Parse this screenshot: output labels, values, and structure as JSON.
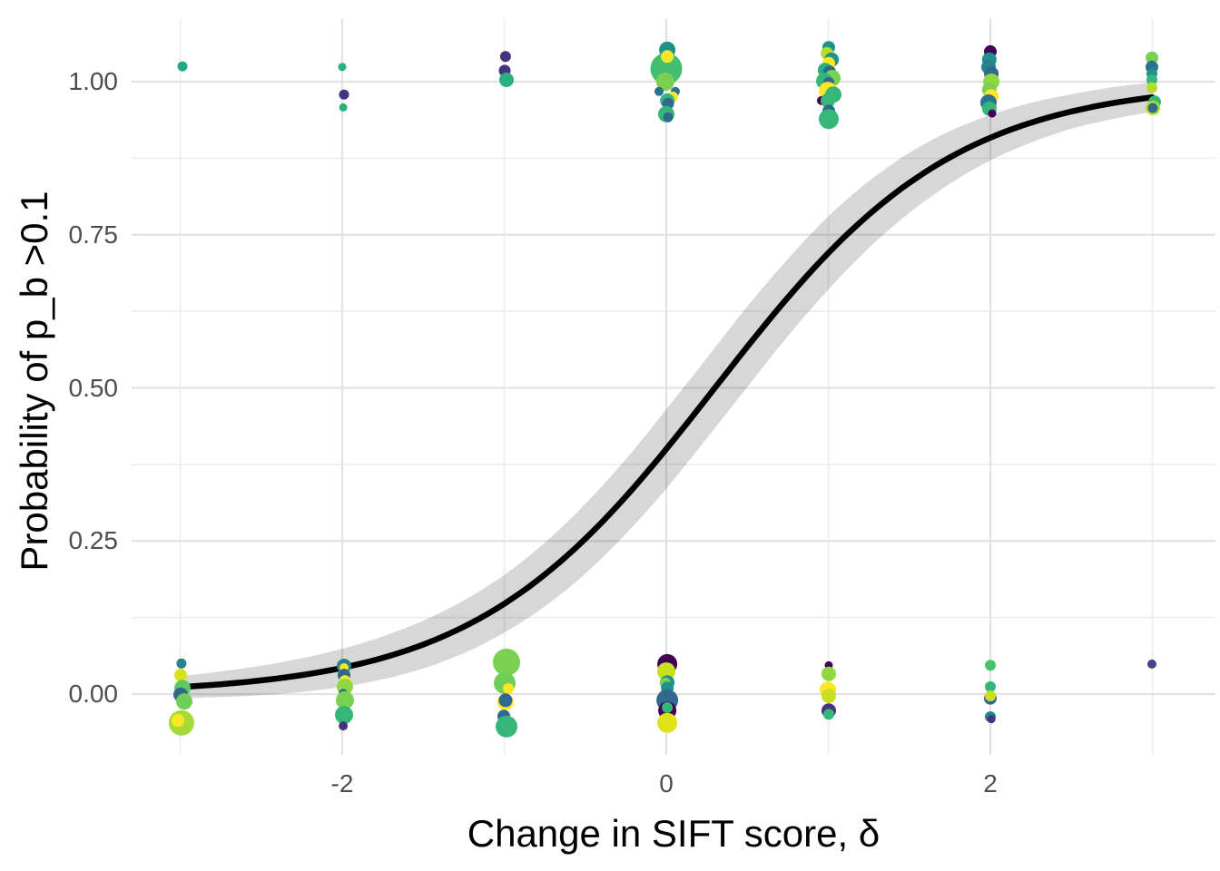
{
  "figure": {
    "xlabel": "Change in SIFT score, δ",
    "ylabel": "Probability of p_b >0.1"
  },
  "chart_data": {
    "type": "scatter",
    "title": "",
    "xlabel": "Change in SIFT score, δ",
    "ylabel": "Probability of p_b >0.1",
    "xlim": [
      -3.3,
      3.39
    ],
    "ylim": [
      -0.115,
      1.104
    ],
    "grid": {
      "major_color": "#e3e3e3",
      "minor_color": "#eeeeee",
      "background": "#ffffff"
    },
    "x_ticks": [
      {
        "value": -2,
        "label": "-2"
      },
      {
        "value": 0,
        "label": "0"
      },
      {
        "value": 2,
        "label": "2"
      }
    ],
    "y_ticks": [
      {
        "value": 0.0,
        "label": "0.00"
      },
      {
        "value": 0.25,
        "label": "0.25"
      },
      {
        "value": 0.5,
        "label": "0.50"
      },
      {
        "value": 0.75,
        "label": "0.75"
      },
      {
        "value": 1.0,
        "label": "1.00"
      }
    ],
    "x_minor_gridlines": [
      -3,
      -1,
      1,
      3
    ],
    "y_minor_gridlines": [
      0.125,
      0.375,
      0.625,
      0.875
    ],
    "fit_curve": {
      "model": "logistic glm fit",
      "formula": "p = 1/(1+exp(-k*(x-x0)))",
      "k": 1.35,
      "x0": 0.3,
      "x_range": [
        -3,
        3
      ],
      "color": "#000000",
      "width": 6.5
    },
    "confidence_band": {
      "color": "#000000",
      "opacity": 0.155,
      "half_widths": [
        {
          "x": -3.0,
          "w": 0.018
        },
        {
          "x": -2.5,
          "w": 0.024
        },
        {
          "x": -2.0,
          "w": 0.031
        },
        {
          "x": -1.5,
          "w": 0.039
        },
        {
          "x": -1.0,
          "w": 0.047
        },
        {
          "x": -0.5,
          "w": 0.057
        },
        {
          "x": 0.0,
          "w": 0.065
        },
        {
          "x": 0.5,
          "w": 0.066
        },
        {
          "x": 1.0,
          "w": 0.06
        },
        {
          "x": 1.5,
          "w": 0.049
        },
        {
          "x": 2.0,
          "w": 0.037
        },
        {
          "x": 2.5,
          "w": 0.028
        },
        {
          "x": 3.0,
          "w": 0.024
        }
      ]
    },
    "points_format": [
      "x_delta",
      "y_probability",
      "radius_px",
      "color"
    ],
    "points": [
      [
        -2.986,
        1.025,
        5.5,
        "#23a884"
      ],
      [
        -2.0,
        1.024,
        4.5,
        "#2ab07f"
      ],
      [
        -1.989,
        0.979,
        5.5,
        "#46327e"
      ],
      [
        -1.994,
        0.958,
        4.5,
        "#2ab07f"
      ],
      [
        -0.992,
        1.041,
        6.0,
        "#46327e"
      ],
      [
        -0.997,
        1.018,
        6.5,
        "#46327e"
      ],
      [
        -0.986,
        1.003,
        8.0,
        "#2ab07f"
      ],
      [
        0.006,
        1.052,
        9.0,
        "#21918c"
      ],
      [
        0.0,
        1.021,
        17.5,
        "#44bf70"
      ],
      [
        0.006,
        1.041,
        7.0,
        "#fde725"
      ],
      [
        -0.006,
        1.0,
        10.0,
        "#7ad151"
      ],
      [
        -0.045,
        0.984,
        5.0,
        "#2c728e"
      ],
      [
        0.056,
        0.984,
        5.0,
        "#2c728e"
      ],
      [
        0.039,
        0.975,
        6.0,
        "#fde725"
      ],
      [
        0.006,
        0.969,
        8.0,
        "#35b779"
      ],
      [
        0.011,
        0.964,
        6.5,
        "#31688e"
      ],
      [
        0.0,
        0.947,
        9.0,
        "#35b779"
      ],
      [
        0.011,
        0.942,
        5.5,
        "#31688e"
      ],
      [
        1.003,
        1.056,
        7.0,
        "#21918c"
      ],
      [
        0.992,
        1.046,
        7.0,
        "#b5de2b"
      ],
      [
        1.02,
        1.036,
        8.0,
        "#21918c"
      ],
      [
        1.003,
        1.03,
        7.0,
        "#fde725"
      ],
      [
        0.98,
        1.019,
        8.0,
        "#2ab07f"
      ],
      [
        1.008,
        1.016,
        7.0,
        "#31688e"
      ],
      [
        1.025,
        1.006,
        9.0,
        "#7ad151"
      ],
      [
        0.975,
        1.001,
        9.0,
        "#35b779"
      ],
      [
        1.003,
        0.999,
        6.0,
        "#31688e"
      ],
      [
        0.997,
        0.985,
        10.0,
        "#fde725"
      ],
      [
        1.031,
        0.979,
        9.0,
        "#35b779"
      ],
      [
        0.958,
        0.969,
        5.0,
        "#440154"
      ],
      [
        0.997,
        0.969,
        8.0,
        "#35b779"
      ],
      [
        1.003,
        0.952,
        7.0,
        "#31688e"
      ],
      [
        1.003,
        0.939,
        11.0,
        "#35b779"
      ],
      [
        2.0,
        1.049,
        7.0,
        "#440154"
      ],
      [
        1.994,
        1.036,
        8.0,
        "#21918c"
      ],
      [
        1.989,
        1.024,
        8.0,
        "#26828e"
      ],
      [
        2.006,
        1.013,
        8.0,
        "#31688e"
      ],
      [
        2.006,
        1.0,
        9.0,
        "#90d743"
      ],
      [
        1.994,
        0.987,
        8.0,
        "#7ad151"
      ],
      [
        2.006,
        0.976,
        8.0,
        "#fde725"
      ],
      [
        1.989,
        0.966,
        9.0,
        "#2c728e"
      ],
      [
        1.994,
        0.956,
        8.0,
        "#35b779"
      ],
      [
        2.011,
        0.948,
        4.5,
        "#440154"
      ],
      [
        2.997,
        1.039,
        7.0,
        "#7ad151"
      ],
      [
        2.997,
        1.024,
        7.0,
        "#2c728e"
      ],
      [
        2.997,
        1.013,
        6.0,
        "#21918c"
      ],
      [
        2.997,
        1.003,
        6.0,
        "#35b779"
      ],
      [
        2.997,
        0.99,
        6.0,
        "#b5de2b"
      ],
      [
        3.014,
        0.967,
        7.0,
        "#35b779"
      ],
      [
        3.003,
        0.957,
        8.0,
        "#b5de2b"
      ],
      [
        3.003,
        0.957,
        5.5,
        "#31688e"
      ],
      [
        -2.992,
        0.05,
        5.5,
        "#26828e"
      ],
      [
        -2.997,
        0.031,
        7.0,
        "#d8e219"
      ],
      [
        -2.986,
        0.01,
        9.0,
        "#5ec962"
      ],
      [
        -2.997,
        -0.001,
        8.0,
        "#31688e"
      ],
      [
        -2.975,
        -0.012,
        9.0,
        "#6ece58"
      ],
      [
        -2.992,
        -0.047,
        14.0,
        "#a5db36"
      ],
      [
        -3.014,
        -0.043,
        7.0,
        "#fde725"
      ],
      [
        -1.989,
        0.046,
        8.0,
        "#26828e"
      ],
      [
        -1.989,
        0.043,
        5.0,
        "#fde725"
      ],
      [
        -1.989,
        0.031,
        7.0,
        "#31688e"
      ],
      [
        -1.983,
        0.022,
        6.0,
        "#fde725"
      ],
      [
        -1.983,
        0.012,
        9.0,
        "#90d743"
      ],
      [
        -1.994,
        0.001,
        5.0,
        "#31688e"
      ],
      [
        -1.983,
        -0.01,
        10.0,
        "#7ad151"
      ],
      [
        -1.989,
        -0.034,
        10.0,
        "#35b779"
      ],
      [
        -1.994,
        -0.052,
        5.0,
        "#46327e"
      ],
      [
        -0.986,
        0.052,
        15.0,
        "#7ad151"
      ],
      [
        -0.997,
        0.018,
        12.0,
        "#6ece58"
      ],
      [
        -0.975,
        0.009,
        6.0,
        "#fde725"
      ],
      [
        -0.992,
        -0.013,
        9.0,
        "#fde725"
      ],
      [
        -0.992,
        -0.01,
        7.5,
        "#31688e"
      ],
      [
        -1.003,
        -0.036,
        7.0,
        "#31688e"
      ],
      [
        -0.986,
        -0.053,
        12.0,
        "#35b779"
      ],
      [
        0.006,
        0.049,
        11.0,
        "#440154"
      ],
      [
        0.0,
        0.037,
        10.0,
        "#c8e020"
      ],
      [
        0.006,
        0.019,
        8.0,
        "#21918c"
      ],
      [
        -0.006,
        0.018,
        6.0,
        "#7ad151"
      ],
      [
        0.006,
        0.01,
        7.0,
        "#21918c"
      ],
      [
        0.006,
        -0.01,
        12.0,
        "#31688e"
      ],
      [
        0.006,
        -0.027,
        10.0,
        "#440154"
      ],
      [
        0.006,
        -0.022,
        6.0,
        "#35b779"
      ],
      [
        0.006,
        -0.047,
        11.0,
        "#dde318"
      ],
      [
        1.003,
        0.047,
        4.5,
        "#440154"
      ],
      [
        1.003,
        0.033,
        8.0,
        "#90d743"
      ],
      [
        0.997,
        0.007,
        9.0,
        "#fde725"
      ],
      [
        1.003,
        -0.003,
        8.0,
        "#c8e020"
      ],
      [
        1.003,
        -0.027,
        8.0,
        "#46327e"
      ],
      [
        1.003,
        -0.033,
        6.0,
        "#35b779"
      ],
      [
        2.0,
        0.047,
        6.0,
        "#4ac16d"
      ],
      [
        2.0,
        0.012,
        6.0,
        "#35b779"
      ],
      [
        2.0,
        -0.007,
        7.0,
        "#31688e"
      ],
      [
        2.0,
        -0.003,
        6.0,
        "#c8e020"
      ],
      [
        2.0,
        -0.037,
        6.0,
        "#26828e"
      ],
      [
        2.006,
        -0.041,
        4.5,
        "#46327e"
      ],
      [
        2.997,
        0.049,
        5.0,
        "#414487"
      ]
    ]
  }
}
